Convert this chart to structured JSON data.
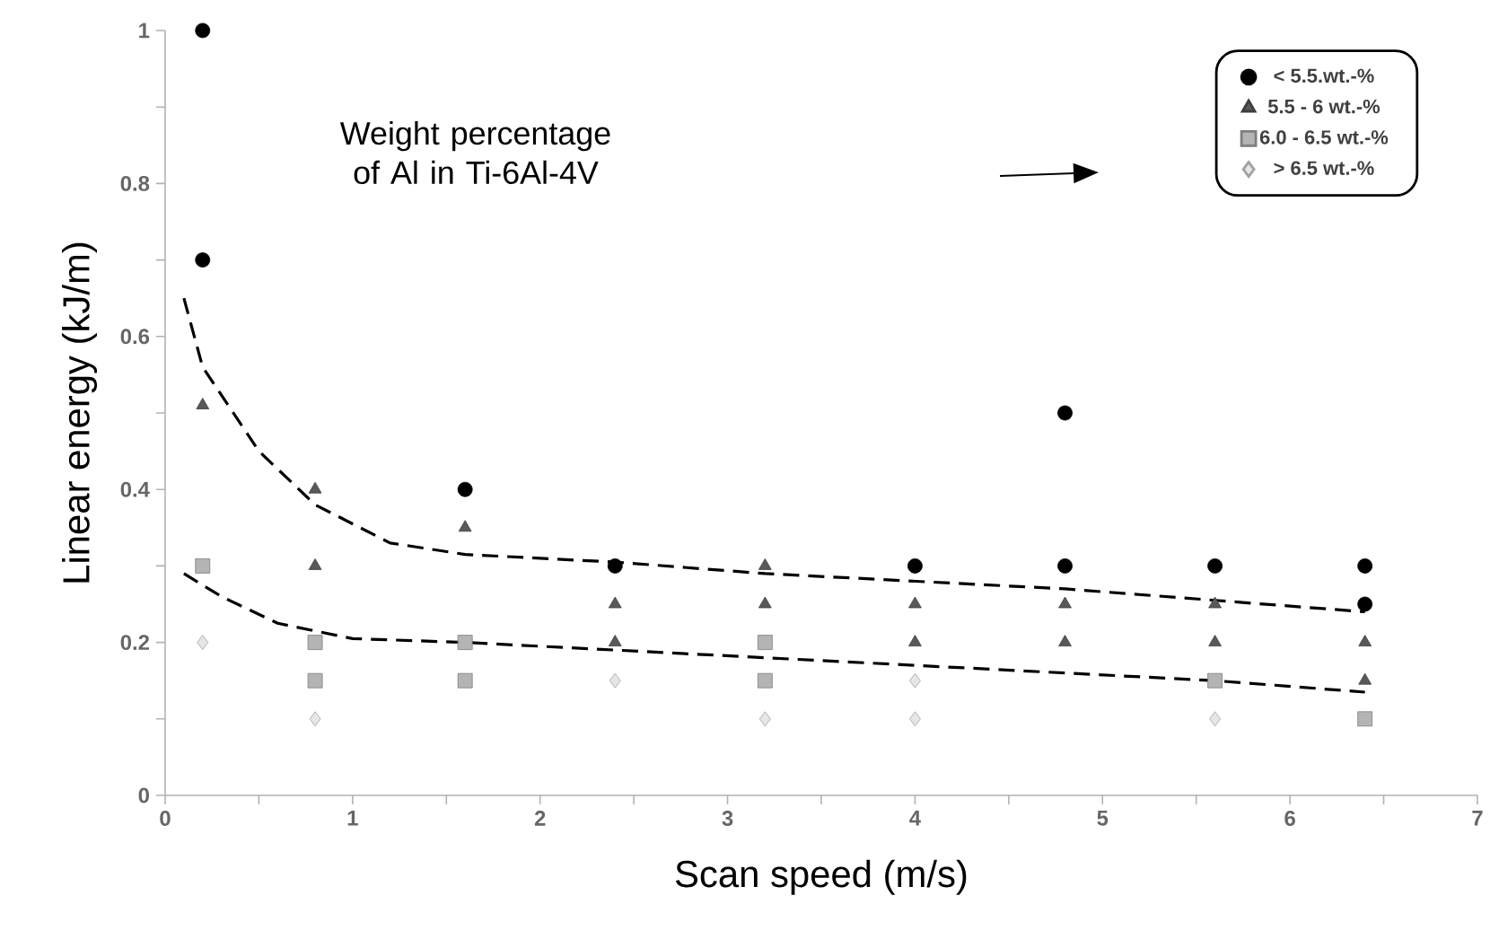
{
  "chart_data": {
    "type": "scatter",
    "xlabel": "Scan speed (m/s)",
    "ylabel": "Linear energy (kJ/m)",
    "annotations": [
      "Weight percentage of Al in Ti-6Al-4V"
    ],
    "xlim": [
      0,
      7
    ],
    "ylim": [
      0,
      1
    ],
    "xticks": [
      0,
      1,
      2,
      3,
      4,
      5,
      6,
      7
    ],
    "yticks": [
      0,
      0.2,
      0.4,
      0.6,
      0.8,
      1
    ],
    "legend": "top right",
    "series": [
      {
        "name": "< 5.5.wt.-%",
        "color": "#000000",
        "marker": "circle",
        "x": [
          0.2,
          0.2,
          1.6,
          2.4,
          4.0,
          4.8,
          4.8,
          5.6,
          6.4,
          6.4
        ],
        "values": [
          1,
          0.7,
          0.4,
          0.3,
          0.3,
          0.5,
          0.3,
          0.3,
          0.3,
          0.25
        ]
      },
      {
        "name": "5.5 - 6 wt.-%",
        "color": "#595959",
        "marker": "triangle",
        "x": [
          0.2,
          0.8,
          0.8,
          1.6,
          2.4,
          2.4,
          3.2,
          3.2,
          4.0,
          4.0,
          4.8,
          4.8,
          5.6,
          5.6,
          6.4,
          6.4
        ],
        "values": [
          0.51,
          0.4,
          0.3,
          0.35,
          0.25,
          0.2,
          0.3,
          0.25,
          0.25,
          0.2,
          0.25,
          0.2,
          0.25,
          0.2,
          0.2,
          0.15
        ]
      },
      {
        "name": "6.0 - 6.5 wt.-%",
        "color": "#b4b4b4",
        "marker": "square",
        "x": [
          0.2,
          0.8,
          0.8,
          1.6,
          1.6,
          3.2,
          3.2,
          5.6,
          6.4
        ],
        "values": [
          0.3,
          0.2,
          0.15,
          0.2,
          0.15,
          0.2,
          0.15,
          0.15,
          0.1
        ]
      },
      {
        "name": "> 6.5 wt.-%",
        "color": "#e6e6e6",
        "marker": "diamond",
        "x": [
          0.2,
          0.8,
          2.4,
          3.2,
          4.0,
          4.0,
          5.6
        ],
        "values": [
          0.2,
          0.1,
          0.15,
          0.1,
          0.15,
          0.1,
          0.1
        ]
      },
      {
        "type": "line",
        "color": "#000000",
        "marker": "none",
        "line_style": "dashed",
        "x": [
          0.1,
          0.2,
          0.5,
          0.8,
          1.2,
          1.6,
          2.4,
          3.2,
          4.0,
          4.8,
          5.6,
          6.4
        ],
        "values": [
          0.65,
          0.56,
          0.45,
          0.38,
          0.33,
          0.315,
          0.305,
          0.29,
          0.28,
          0.27,
          0.255,
          0.24
        ]
      },
      {
        "type": "line",
        "color": "#000000",
        "marker": "none",
        "line_style": "dashed",
        "x": [
          0.1,
          0.3,
          0.6,
          1.0,
          1.6,
          2.4,
          3.2,
          4.0,
          4.8,
          5.6,
          6.4
        ],
        "values": [
          0.29,
          0.26,
          0.225,
          0.205,
          0.2,
          0.19,
          0.18,
          0.17,
          0.16,
          0.15,
          0.135
        ]
      }
    ]
  }
}
